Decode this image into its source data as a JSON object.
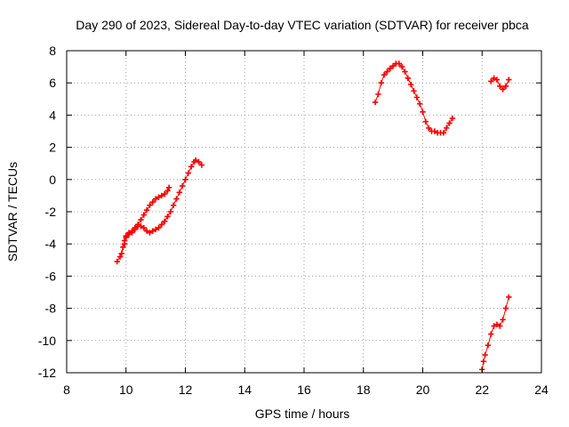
{
  "chart_data": {
    "type": "scatter",
    "title": "Day 290 of 2023, Sidereal Day-to-day VTEC variation (SDTVAR) for receiver pbca",
    "xlabel": "GPS time / hours",
    "ylabel": "SDTVAR / TECUs",
    "xlim": [
      8,
      24
    ],
    "ylim": [
      -12,
      8
    ],
    "xticks": [
      "8",
      "10",
      "12",
      "14",
      "16",
      "18",
      "20",
      "22",
      "24"
    ],
    "yticks": [
      "-12",
      "-10",
      "-8",
      "-6",
      "-4",
      "-2",
      "0",
      "2",
      "4",
      "6",
      "8"
    ],
    "grid": true,
    "color": "#ff0000",
    "marker": "plus",
    "series": [
      {
        "name": "segment-1",
        "points": [
          [
            9.7,
            -5.1
          ],
          [
            9.8,
            -4.8
          ],
          [
            9.9,
            -4.2
          ],
          [
            9.95,
            -3.8
          ],
          [
            10.0,
            -3.5
          ],
          [
            10.1,
            -3.3
          ],
          [
            10.2,
            -3.2
          ],
          [
            10.3,
            -3.0
          ],
          [
            10.4,
            -2.9
          ],
          [
            10.5,
            -2.9
          ],
          [
            10.6,
            -3.0
          ],
          [
            10.7,
            -3.2
          ],
          [
            10.8,
            -3.3
          ],
          [
            10.9,
            -3.2
          ],
          [
            11.0,
            -3.1
          ],
          [
            11.1,
            -3.0
          ],
          [
            11.2,
            -2.8
          ],
          [
            11.3,
            -2.6
          ],
          [
            11.4,
            -2.3
          ],
          [
            11.5,
            -2.0
          ],
          [
            11.6,
            -1.6
          ],
          [
            11.7,
            -1.2
          ],
          [
            11.8,
            -0.8
          ],
          [
            11.9,
            -0.4
          ],
          [
            12.0,
            0.0
          ],
          [
            12.1,
            0.4
          ],
          [
            12.2,
            0.8
          ],
          [
            12.3,
            1.1
          ],
          [
            12.35,
            1.2
          ],
          [
            12.45,
            1.1
          ],
          [
            12.55,
            0.9
          ]
        ]
      },
      {
        "name": "segment-2",
        "points": [
          [
            9.85,
            -4.6
          ],
          [
            9.95,
            -4.0
          ],
          [
            10.0,
            -3.6
          ],
          [
            10.1,
            -3.4
          ],
          [
            10.2,
            -3.3
          ],
          [
            10.3,
            -3.1
          ],
          [
            10.4,
            -2.8
          ],
          [
            10.5,
            -2.5
          ],
          [
            10.6,
            -2.2
          ],
          [
            10.7,
            -1.9
          ],
          [
            10.8,
            -1.6
          ],
          [
            10.9,
            -1.4
          ],
          [
            11.0,
            -1.2
          ],
          [
            11.1,
            -1.1
          ],
          [
            11.2,
            -1.0
          ],
          [
            11.3,
            -0.9
          ],
          [
            11.4,
            -0.7
          ],
          [
            11.45,
            -0.5
          ]
        ]
      },
      {
        "name": "segment-3",
        "points": [
          [
            18.4,
            4.8
          ],
          [
            18.5,
            5.3
          ],
          [
            18.6,
            6.0
          ],
          [
            18.7,
            6.5
          ],
          [
            18.8,
            6.7
          ],
          [
            18.9,
            6.9
          ],
          [
            19.0,
            7.05
          ],
          [
            19.1,
            7.2
          ],
          [
            19.2,
            7.2
          ],
          [
            19.3,
            7.0
          ],
          [
            19.4,
            6.7
          ],
          [
            19.5,
            6.3
          ],
          [
            19.6,
            5.9
          ],
          [
            19.7,
            5.5
          ],
          [
            19.8,
            5.1
          ],
          [
            19.9,
            4.7
          ],
          [
            20.0,
            4.2
          ],
          [
            20.1,
            3.6
          ],
          [
            20.2,
            3.2
          ],
          [
            20.3,
            3.0
          ],
          [
            20.4,
            3.0
          ],
          [
            20.5,
            2.9
          ],
          [
            20.6,
            2.9
          ],
          [
            20.7,
            2.9
          ],
          [
            20.8,
            3.2
          ],
          [
            20.9,
            3.5
          ],
          [
            21.0,
            3.8
          ]
        ]
      },
      {
        "name": "segment-4",
        "points": [
          [
            22.3,
            6.1
          ],
          [
            22.4,
            6.3
          ],
          [
            22.5,
            6.2
          ],
          [
            22.6,
            5.8
          ],
          [
            22.7,
            5.6
          ],
          [
            22.8,
            5.8
          ],
          [
            22.9,
            6.2
          ]
        ]
      },
      {
        "name": "segment-5",
        "points": [
          [
            22.0,
            -11.8
          ],
          [
            22.05,
            -11.3
          ],
          [
            22.1,
            -10.9
          ],
          [
            22.2,
            -10.3
          ],
          [
            22.3,
            -9.6
          ],
          [
            22.4,
            -9.1
          ],
          [
            22.5,
            -9.0
          ],
          [
            22.6,
            -9.1
          ],
          [
            22.7,
            -8.7
          ],
          [
            22.8,
            -8.0
          ],
          [
            22.9,
            -7.3
          ]
        ]
      }
    ]
  }
}
